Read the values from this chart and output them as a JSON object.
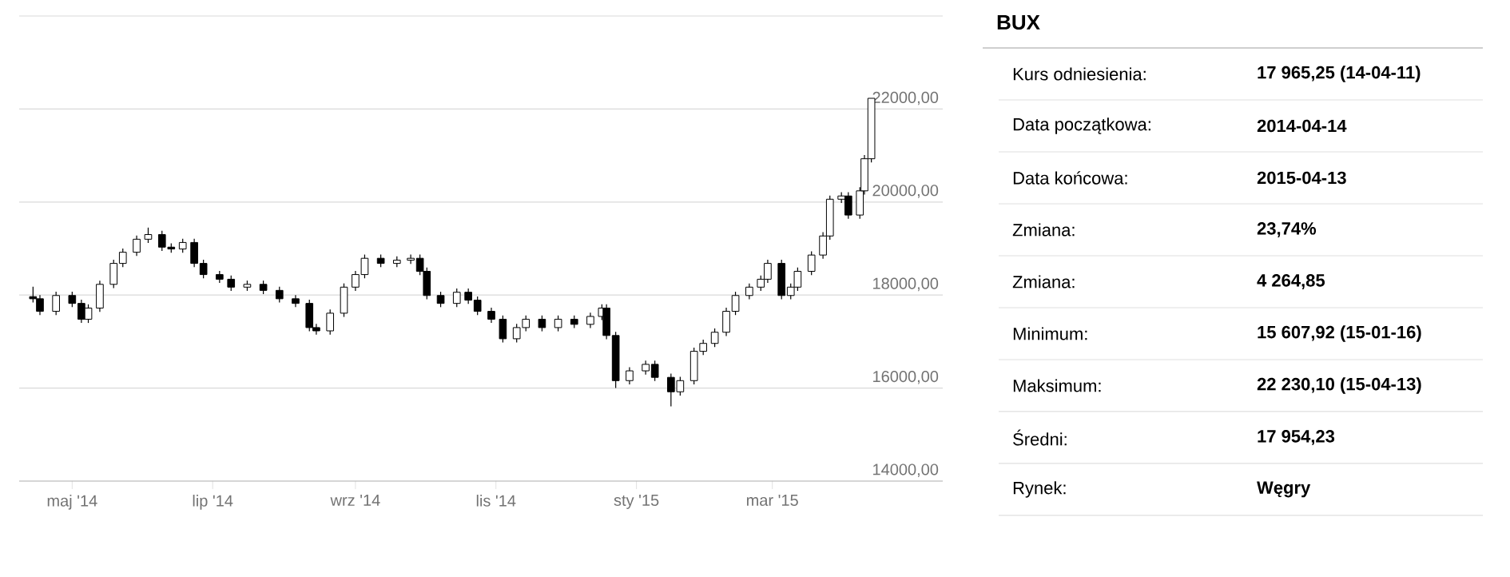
{
  "chart_data": {
    "type": "candlestick",
    "title": "BUX",
    "x": [
      "2014-04-14",
      "2014-04-17",
      "2014-04-24",
      "2014-05-01",
      "2014-05-05",
      "2014-05-08",
      "2014-05-13",
      "2014-05-19",
      "2014-05-23",
      "2014-05-29",
      "2014-06-03",
      "2014-06-09",
      "2014-06-13",
      "2014-06-18",
      "2014-06-23",
      "2014-06-27",
      "2014-07-04",
      "2014-07-09",
      "2014-07-16",
      "2014-07-23",
      "2014-07-30",
      "2014-08-06",
      "2014-08-12",
      "2014-08-15",
      "2014-08-21",
      "2014-08-27",
      "2014-09-01",
      "2014-09-05",
      "2014-09-12",
      "2014-09-19",
      "2014-09-25",
      "2014-09-29",
      "2014-10-02",
      "2014-10-08",
      "2014-10-15",
      "2014-10-20",
      "2014-10-24",
      "2014-10-30",
      "2014-11-04",
      "2014-11-10",
      "2014-11-14",
      "2014-11-21",
      "2014-11-28",
      "2014-12-05",
      "2014-12-12",
      "2014-12-17",
      "2014-12-19",
      "2014-12-23",
      "2014-12-29",
      "2015-01-05",
      "2015-01-09",
      "2015-01-16",
      "2015-01-20",
      "2015-01-26",
      "2015-01-30",
      "2015-02-04",
      "2015-02-09",
      "2015-02-13",
      "2015-02-19",
      "2015-02-24",
      "2015-02-27",
      "2015-03-05",
      "2015-03-09",
      "2015-03-12",
      "2015-03-18",
      "2015-03-23",
      "2015-03-26",
      "2015-03-31",
      "2015-04-03",
      "2015-04-08",
      "2015-04-10",
      "2015-04-13"
    ],
    "ohlc": [
      [
        17965,
        18180,
        17840,
        17920
      ],
      [
        17920,
        18000,
        17570,
        17650
      ],
      [
        17650,
        18070,
        17570,
        17990
      ],
      [
        17990,
        18070,
        17740,
        17820
      ],
      [
        17820,
        17900,
        17400,
        17480
      ],
      [
        17480,
        17800,
        17400,
        17720
      ],
      [
        17720,
        18310,
        17640,
        18230
      ],
      [
        18230,
        18760,
        18150,
        18680
      ],
      [
        18680,
        19000,
        18600,
        18920
      ],
      [
        18920,
        19280,
        18840,
        19200
      ],
      [
        19200,
        19450,
        19120,
        19300
      ],
      [
        19300,
        19380,
        18950,
        19030
      ],
      [
        19030,
        19110,
        18910,
        18990
      ],
      [
        18990,
        19210,
        18910,
        19130
      ],
      [
        19130,
        19210,
        18600,
        18680
      ],
      [
        18680,
        18760,
        18360,
        18440
      ],
      [
        18440,
        18520,
        18260,
        18340
      ],
      [
        18340,
        18420,
        18090,
        18170
      ],
      [
        18170,
        18310,
        18090,
        18230
      ],
      [
        18230,
        18310,
        18020,
        18100
      ],
      [
        18100,
        18180,
        17840,
        17920
      ],
      [
        17920,
        18000,
        17740,
        17820
      ],
      [
        17820,
        17900,
        17220,
        17300
      ],
      [
        17300,
        17380,
        17150,
        17230
      ],
      [
        17230,
        17690,
        17150,
        17610
      ],
      [
        17610,
        18250,
        17530,
        18170
      ],
      [
        18170,
        18520,
        18090,
        18440
      ],
      [
        18440,
        18870,
        18360,
        18790
      ],
      [
        18790,
        18870,
        18600,
        18680
      ],
      [
        18680,
        18830,
        18600,
        18750
      ],
      [
        18750,
        18870,
        18670,
        18790
      ],
      [
        18790,
        18870,
        18430,
        18510
      ],
      [
        18510,
        18590,
        17910,
        17990
      ],
      [
        17990,
        18070,
        17740,
        17820
      ],
      [
        17820,
        18140,
        17740,
        18060
      ],
      [
        18060,
        18140,
        17810,
        17890
      ],
      [
        17890,
        17970,
        17570,
        17650
      ],
      [
        17650,
        17730,
        17400,
        17480
      ],
      [
        17480,
        17560,
        16980,
        17060
      ],
      [
        17060,
        17380,
        16980,
        17300
      ],
      [
        17300,
        17560,
        17220,
        17480
      ],
      [
        17480,
        17560,
        17220,
        17300
      ],
      [
        17300,
        17560,
        17220,
        17480
      ],
      [
        17480,
        17560,
        17290,
        17370
      ],
      [
        17370,
        17620,
        17290,
        17540
      ],
      [
        17540,
        17800,
        17460,
        17720
      ],
      [
        17720,
        17800,
        17050,
        17130
      ],
      [
        17130,
        17210,
        16000,
        16160
      ],
      [
        16160,
        16450,
        16080,
        16370
      ],
      [
        16370,
        16590,
        16290,
        16510
      ],
      [
        16510,
        16590,
        16150,
        16230
      ],
      [
        16230,
        16310,
        15608,
        15920
      ],
      [
        15920,
        16240,
        15840,
        16160
      ],
      [
        16160,
        16870,
        16080,
        16790
      ],
      [
        16790,
        17040,
        16710,
        16960
      ],
      [
        16960,
        17280,
        16880,
        17200
      ],
      [
        17200,
        17730,
        17120,
        17650
      ],
      [
        17650,
        18070,
        17570,
        17990
      ],
      [
        17990,
        18250,
        17910,
        18170
      ],
      [
        18170,
        18420,
        18090,
        18340
      ],
      [
        18340,
        18760,
        18260,
        18680
      ],
      [
        18680,
        18760,
        17910,
        17990
      ],
      [
        17990,
        18250,
        17910,
        18170
      ],
      [
        18170,
        18590,
        18090,
        18510
      ],
      [
        18510,
        18940,
        18430,
        18860
      ],
      [
        18860,
        19350,
        18780,
        19270
      ],
      [
        19270,
        20140,
        19190,
        20060
      ],
      [
        20060,
        20210,
        19980,
        20130
      ],
      [
        20130,
        20210,
        19640,
        19720
      ],
      [
        19720,
        20320,
        19640,
        20240
      ],
      [
        20240,
        21010,
        20160,
        20930
      ],
      [
        20930,
        22230,
        20850,
        22230
      ]
    ],
    "xlim": [
      "2014-04-08",
      "2015-05-14"
    ],
    "xticks": [
      {
        "value": "2014-05-01",
        "label": "maj '14"
      },
      {
        "value": "2014-07-01",
        "label": "lip '14"
      },
      {
        "value": "2014-09-01",
        "label": "wrz '14"
      },
      {
        "value": "2014-11-01",
        "label": "lis '14"
      },
      {
        "value": "2015-01-01",
        "label": "sty '15"
      },
      {
        "value": "2015-03-01",
        "label": "mar '15"
      }
    ],
    "ylim": [
      14000,
      24000
    ],
    "yticks": [
      {
        "value": 14000,
        "label": "14000,00"
      },
      {
        "value": 16000,
        "label": "16000,00"
      },
      {
        "value": 18000,
        "label": "18000,00"
      },
      {
        "value": 20000,
        "label": "20000,00"
      },
      {
        "value": 22000,
        "label": "22000,00"
      },
      {
        "value": 24000,
        "label": null
      }
    ],
    "grid": "y",
    "annotations": [
      "Kurs odniesienia:",
      "17 965,25 (14-04-11)",
      "Data początkowa:",
      "2014-04-14",
      "Data końcowa:",
      "2015-04-13",
      "Zmiana:",
      "23,74%",
      "Zmiana:",
      "4 264,85",
      "Minimum:",
      "15 607,92 (15-01-16)",
      "Maksimum:",
      "22 230,10 (15-04-13)",
      "Średni:",
      "17 954,23",
      "Rynek:",
      "Węgry"
    ]
  }
}
